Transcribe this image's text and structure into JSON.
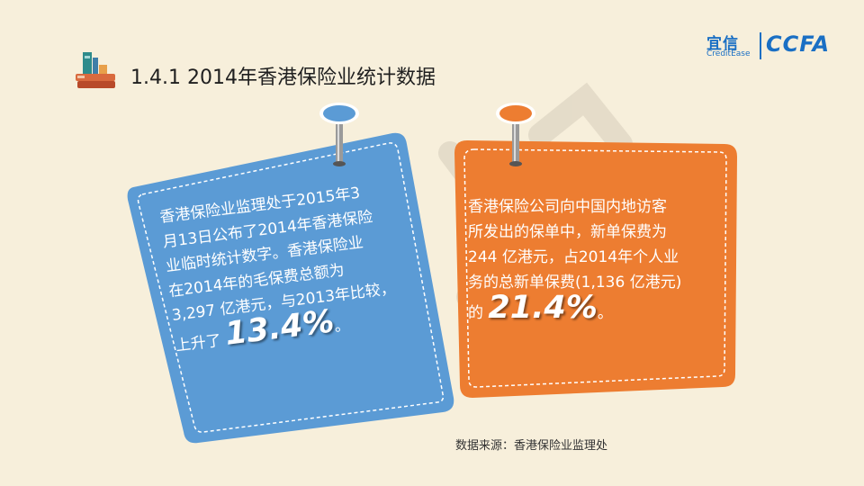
{
  "header": {
    "title": "1.4.1 2014年香港保险业统计数据",
    "logo_cn": "宜信",
    "logo_en": "CreditEase",
    "logo_ccfa": "CCFA"
  },
  "cards": [
    {
      "color": "#5b9bd5",
      "pin_color": "#5b9bd5",
      "lines": [
        "香港保险业监理处于2015年3",
        "月13日公布了2014年香港保险",
        "业临时统计数字。香港保险业",
        "在2014年的毛保费总额为",
        "3,297 亿港元，与2013年比较，"
      ],
      "last_prefix": "上升了",
      "highlight": "13.4%",
      "last_suffix": "。"
    },
    {
      "color": "#ed7d31",
      "pin_color": "#ed7d31",
      "lines": [
        "香港保险公司向中国内地访客",
        "所发出的保单中，新单保费为",
        "244 亿港元，占2014年个人业",
        "务的总新单保费(1,136 亿港元)"
      ],
      "last_prefix": "的",
      "highlight": "21.4%",
      "last_suffix": "。"
    }
  ],
  "source": "数据来源：香港保险业监理处"
}
